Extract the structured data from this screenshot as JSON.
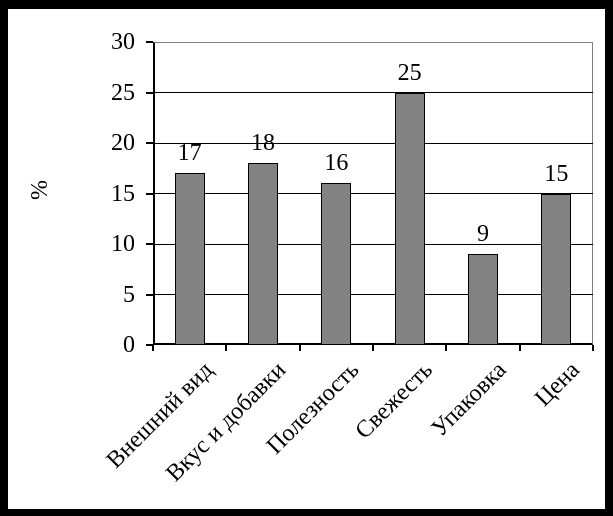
{
  "chart_data": {
    "type": "bar",
    "title": "",
    "xlabel": "",
    "ylabel": "%",
    "categories": [
      "Внешний вид",
      "Вкус и добавки",
      "Полезность",
      "Свежесть",
      "Упаковка",
      "Цена"
    ],
    "values": [
      17,
      18,
      16,
      25,
      9,
      15
    ],
    "value_labels": [
      "17",
      "18",
      "16",
      "25",
      "9",
      "15"
    ],
    "ylim": [
      0,
      30
    ],
    "yticks": [
      0,
      5,
      10,
      15,
      20,
      25,
      30
    ],
    "grid": true,
    "legend_position": "none",
    "bar_fill": "#828282",
    "bar_border": "#000000",
    "gridline_color": "#000000",
    "axis_color": "#000000",
    "plot_border_color": "#808080",
    "frame_color": "#000000",
    "background_color": "#ffffff"
  }
}
